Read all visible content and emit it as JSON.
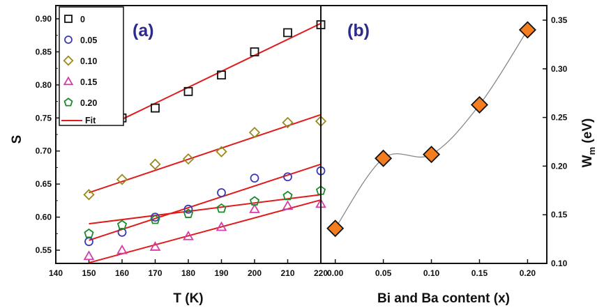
{
  "chart_data": [
    {
      "type": "scatter",
      "panel_label": "(a)",
      "xlabel": "T (K)",
      "ylabel": "S",
      "xlim": [
        140,
        220
      ],
      "ylim": [
        0.53,
        0.92
      ],
      "xticks": [
        140,
        150,
        160,
        170,
        180,
        190,
        200,
        210,
        220
      ],
      "yticks": [
        0.55,
        0.6,
        0.65,
        0.7,
        0.75,
        0.8,
        0.85,
        0.9
      ],
      "legend_position": "top-left",
      "series": [
        {
          "name": "0",
          "marker": "square",
          "color": "#111111",
          "x": [
            160,
            170,
            180,
            190,
            200,
            210,
            220
          ],
          "y": [
            0.75,
            0.765,
            0.79,
            0.815,
            0.85,
            0.879,
            0.891
          ]
        },
        {
          "name": "0.05",
          "marker": "circle",
          "color": "#3a3ab5",
          "x": [
            150,
            160,
            170,
            180,
            190,
            200,
            210,
            220
          ],
          "y": [
            0.563,
            0.577,
            0.6,
            0.612,
            0.637,
            0.659,
            0.661,
            0.67
          ]
        },
        {
          "name": "0.10",
          "marker": "diamond",
          "color": "#9a8a1e",
          "x": [
            150,
            160,
            170,
            180,
            190,
            200,
            210,
            220
          ],
          "y": [
            0.634,
            0.657,
            0.68,
            0.688,
            0.699,
            0.728,
            0.743,
            0.745
          ]
        },
        {
          "name": "0.15",
          "marker": "triangle",
          "color": "#d63ca8",
          "x": [
            150,
            160,
            170,
            180,
            190,
            200,
            210,
            220
          ],
          "y": [
            0.541,
            0.55,
            0.555,
            0.571,
            0.585,
            0.612,
            0.617,
            0.62
          ]
        },
        {
          "name": "0.20",
          "marker": "pentagon",
          "color": "#1c8a2a",
          "x": [
            150,
            160,
            170,
            180,
            190,
            200,
            210,
            220
          ],
          "y": [
            0.575,
            0.588,
            0.596,
            0.605,
            0.613,
            0.624,
            0.632,
            0.64
          ]
        }
      ],
      "fit_label": "Fit",
      "fit_color": "#e01b1b",
      "fits": [
        {
          "x": [
            160,
            220
          ],
          "y": [
            0.748,
            0.893
          ]
        },
        {
          "x": [
            150,
            220
          ],
          "y": [
            0.565,
            0.68
          ]
        },
        {
          "x": [
            150,
            220
          ],
          "y": [
            0.637,
            0.755
          ]
        },
        {
          "x": [
            150,
            220
          ],
          "y": [
            0.531,
            0.626
          ]
        },
        {
          "x": [
            150,
            220
          ],
          "y": [
            0.59,
            0.634
          ]
        }
      ]
    },
    {
      "type": "scatter",
      "panel_label": "(b)",
      "xlabel": "Bi and Ba content (x)",
      "ylabel_main": "W",
      "ylabel_sub": "m",
      "ylabel_unit": " (eV)",
      "xlim": [
        -0.015,
        0.22
      ],
      "ylim": [
        0.1,
        0.365
      ],
      "xticks": [
        "0.00",
        "0.05",
        "0.10",
        "0.15",
        "0.20"
      ],
      "yticks": [
        "0.10",
        "0.15",
        "0.20",
        "0.25",
        "0.30",
        "0.35"
      ],
      "marker": "diamond",
      "marker_color": "#f47d20",
      "curve_color": "#888888",
      "x": [
        0.0,
        0.05,
        0.1,
        0.15,
        0.2
      ],
      "y": [
        0.136,
        0.208,
        0.212,
        0.263,
        0.34
      ]
    }
  ]
}
